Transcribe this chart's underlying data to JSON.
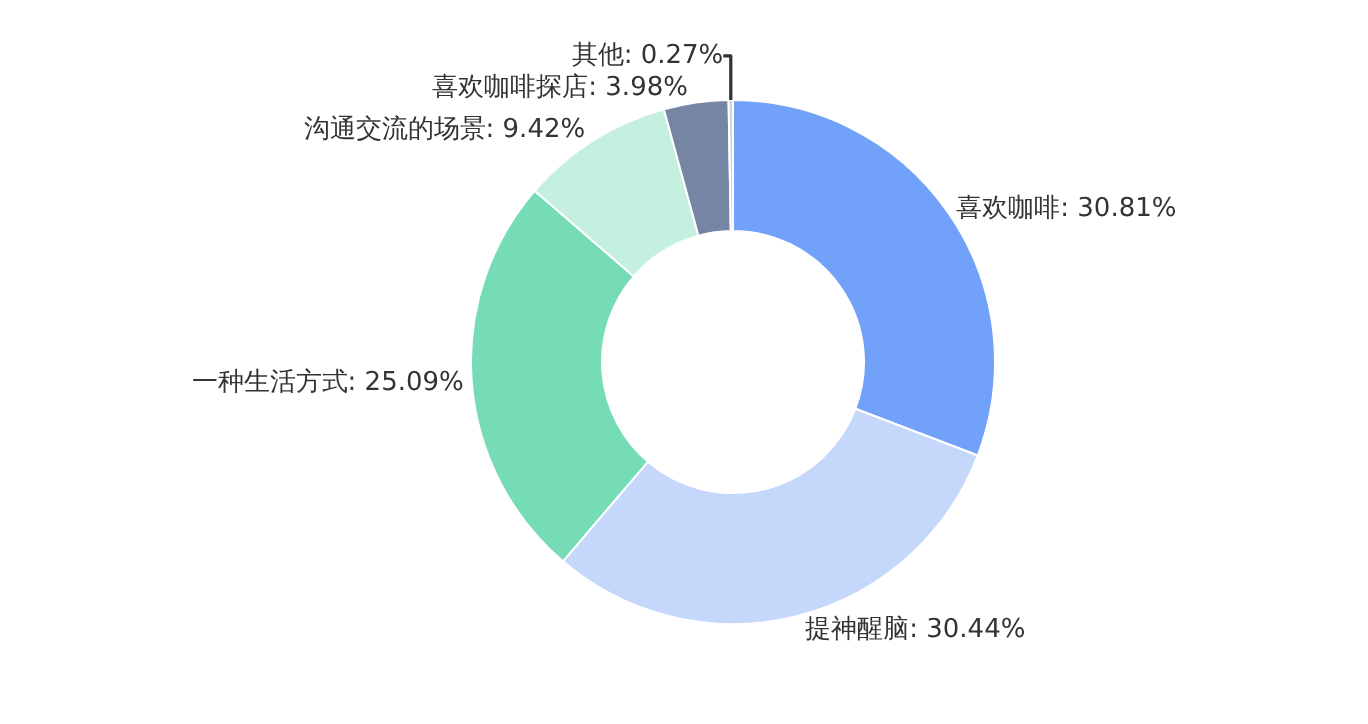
{
  "chart_data": {
    "type": "donut",
    "categories": [
      "喜欢咖啡",
      "提神醒脑",
      "一种生活方式",
      "沟通交流的场景",
      "喜欢咖啡探店",
      "其他"
    ],
    "values": [
      30.81,
      30.44,
      25.09,
      9.42,
      3.98,
      0.27
    ],
    "colors": [
      "#71a1f8",
      "#c5d8fb",
      "#76dcb5",
      "#c5f0e0",
      "#7585a3",
      "#d0d4db"
    ],
    "value_labels": [
      "30.81%",
      "30.44%",
      "25.09%",
      "9.42%",
      "3.98%",
      "0.27%"
    ]
  }
}
